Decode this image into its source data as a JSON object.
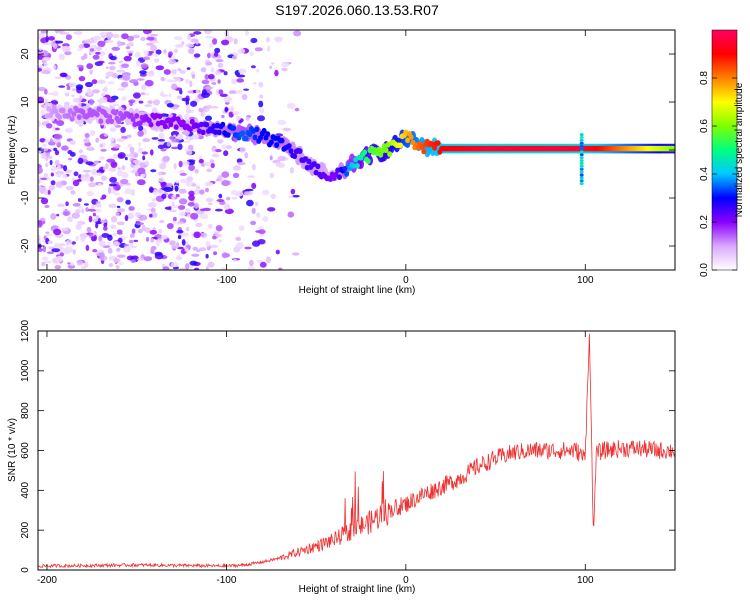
{
  "title": "S197.2026.060.13.53.R07",
  "chart_data": [
    {
      "type": "heatmap",
      "name": "spectrogram",
      "xlabel": "Height of straight line (km)",
      "ylabel": "Frequency (Hz)",
      "xlim": [
        -205,
        150
      ],
      "ylim": [
        -25,
        25
      ],
      "x_ticks": [
        -200,
        -100,
        0,
        100
      ],
      "y_ticks": [
        -20,
        -10,
        0,
        10,
        20
      ],
      "colorbar": {
        "label": "Normalized spectral amplitude",
        "range": [
          0,
          1
        ],
        "ticks": [
          0.0,
          0.2,
          0.4,
          0.6,
          0.8
        ],
        "colors": [
          "#ffffff",
          "#d9a8ff",
          "#8a00ff",
          "#0000ff",
          "#00c8ff",
          "#00ff80",
          "#80ff00",
          "#ffff00",
          "#ff8000",
          "#ff0000",
          "#ff0060"
        ]
      },
      "ridge": {
        "x": [
          -200,
          -180,
          -160,
          -140,
          -120,
          -100,
          -90,
          -80,
          -70,
          -60,
          -50,
          -40,
          -30,
          -20,
          -10,
          0,
          10,
          20,
          50,
          100,
          150
        ],
        "y": [
          8,
          7.5,
          7,
          6,
          5,
          4,
          3.5,
          3,
          1,
          -1,
          -4,
          -6,
          -3,
          -1,
          0,
          2.5,
          0.8,
          0.3,
          0.3,
          0.3,
          0.3
        ],
        "amplitude": [
          0.1,
          0.15,
          0.15,
          0.2,
          0.2,
          0.3,
          0.35,
          0.3,
          0.3,
          0.25,
          0.25,
          0.2,
          0.4,
          0.55,
          0.6,
          0.75,
          0.85,
          0.9,
          0.95,
          0.95,
          0.6
        ]
      },
      "noise_region_x": [
        -205,
        -60
      ]
    },
    {
      "type": "line",
      "name": "snr",
      "xlabel": "Height of straight line (km)",
      "ylabel": "SNR (10 * v/v)",
      "xlim": [
        -205,
        150
      ],
      "ylim": [
        0,
        1200
      ],
      "x_ticks": [
        -200,
        -100,
        0,
        100
      ],
      "y_ticks": [
        0,
        200,
        400,
        600,
        800,
        1000,
        1200
      ],
      "line_color": "#ee3030",
      "series": {
        "x": [
          -205,
          -180,
          -150,
          -120,
          -100,
          -90,
          -80,
          -70,
          -60,
          -50,
          -40,
          -30,
          -20,
          -10,
          0,
          10,
          20,
          30,
          40,
          50,
          60,
          70,
          80,
          90,
          95,
          100,
          102,
          104,
          106,
          110,
          120,
          130,
          140,
          150
        ],
        "y": [
          20,
          22,
          25,
          22,
          20,
          25,
          40,
          60,
          90,
          120,
          150,
          200,
          240,
          300,
          330,
          380,
          420,
          460,
          520,
          560,
          590,
          600,
          600,
          600,
          600,
          560,
          1200,
          140,
          580,
          600,
          610,
          610,
          600,
          600
        ]
      }
    }
  ]
}
